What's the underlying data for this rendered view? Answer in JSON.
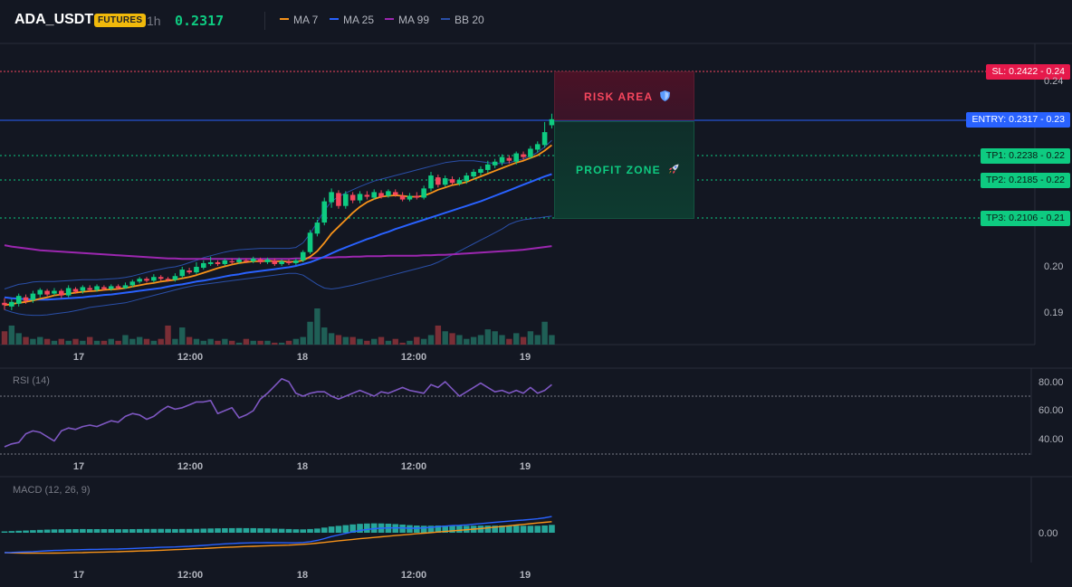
{
  "header": {
    "symbol": "ADA_USDT",
    "badge": "FUTURES",
    "timeframe": "1h",
    "price": "0.2317",
    "indicators": [
      {
        "label": "MA 7",
        "color": "#f7931a"
      },
      {
        "label": "MA 25",
        "color": "#2962ff"
      },
      {
        "label": "MA 99",
        "color": "#9c27b0"
      },
      {
        "label": "BB 20",
        "color": "#2a4fa8"
      }
    ]
  },
  "levels": {
    "sl": {
      "tag": "SL: 0.2422 - 0.24",
      "value": 0.2422,
      "color": "#f6465d"
    },
    "entry": {
      "tag": "ENTRY: 0.2317 - 0.23",
      "value": 0.2317,
      "color": "#2962ff"
    },
    "tp1": {
      "tag": "TP1: 0.2238 - 0.22",
      "value": 0.2238,
      "color": "#0ecb81"
    },
    "tp2": {
      "tag": "TP2: 0.2185 - 0.22",
      "value": 0.2185,
      "color": "#0ecb81"
    },
    "tp3": {
      "tag": "TP3: 0.2106 - 0.21",
      "value": 0.2106,
      "color": "#0ecb81"
    }
  },
  "zones": {
    "risk_label": "RISK AREA",
    "risk_icon": "shield-icon",
    "profit_label": "PROFIT ZONE",
    "profit_icon": "rocket-icon"
  },
  "price_axis": [
    "0.24",
    "0.20",
    "0.19"
  ],
  "time_axis": [
    "17",
    "12:00",
    "18",
    "12:00",
    "19"
  ],
  "rsi": {
    "title": "RSI (14)",
    "ticks": [
      "80.00",
      "60.00",
      "40.00"
    ]
  },
  "macd": {
    "title": "MACD (12, 26, 9)",
    "ticks": [
      "0.00"
    ]
  },
  "chart_data": {
    "type": "candlestick",
    "symbol": "ADA_USDT",
    "interval": "1h",
    "ylim": [
      0.1855,
      0.2455
    ],
    "candles": [
      [
        0.192,
        0.1915,
        0.193,
        0.1905
      ],
      [
        0.1912,
        0.1922,
        0.1928,
        0.1904
      ],
      [
        0.1918,
        0.1935,
        0.194,
        0.1912
      ],
      [
        0.1932,
        0.1924,
        0.1938,
        0.1918
      ],
      [
        0.1926,
        0.194,
        0.1946,
        0.192
      ],
      [
        0.1938,
        0.1948,
        0.1952,
        0.1932
      ],
      [
        0.1946,
        0.1938,
        0.195,
        0.1934
      ],
      [
        0.194,
        0.1946,
        0.1952,
        0.1936
      ],
      [
        0.1946,
        0.1936,
        0.195,
        0.193
      ],
      [
        0.1936,
        0.1952,
        0.1958,
        0.1932
      ],
      [
        0.195,
        0.1944,
        0.1954,
        0.194
      ],
      [
        0.1946,
        0.1954,
        0.1958,
        0.194
      ],
      [
        0.1952,
        0.1948,
        0.1958,
        0.1944
      ],
      [
        0.1948,
        0.1956,
        0.196,
        0.1944
      ],
      [
        0.1954,
        0.195,
        0.1958,
        0.1946
      ],
      [
        0.195,
        0.1956,
        0.196,
        0.1946
      ],
      [
        0.1956,
        0.1952,
        0.196,
        0.1948
      ],
      [
        0.1952,
        0.1958,
        0.1964,
        0.195
      ],
      [
        0.1958,
        0.1966,
        0.197,
        0.1954
      ],
      [
        0.1966,
        0.1972,
        0.1976,
        0.1962
      ],
      [
        0.1972,
        0.1968,
        0.1976,
        0.1964
      ],
      [
        0.1968,
        0.1976,
        0.1982,
        0.1964
      ],
      [
        0.1976,
        0.1972,
        0.198,
        0.1968
      ],
      [
        0.1972,
        0.197,
        0.1976,
        0.1966
      ],
      [
        0.197,
        0.1978,
        0.1984,
        0.1966
      ],
      [
        0.1978,
        0.1992,
        0.1998,
        0.1974
      ],
      [
        0.199,
        0.1986,
        0.1996,
        0.1982
      ],
      [
        0.1986,
        0.1998,
        0.2008,
        0.1982
      ],
      [
        0.1996,
        0.2006,
        0.2012,
        0.1992
      ],
      [
        0.2004,
        0.2008,
        0.202,
        0.2
      ],
      [
        0.2008,
        0.2004,
        0.2012,
        0.2
      ],
      [
        0.2004,
        0.2012,
        0.2016,
        0.2
      ],
      [
        0.201,
        0.2008,
        0.2016,
        0.2004
      ],
      [
        0.2008,
        0.2014,
        0.2018,
        0.2004
      ],
      [
        0.2012,
        0.201,
        0.2016,
        0.2006
      ],
      [
        0.201,
        0.2016,
        0.202,
        0.2006
      ],
      [
        0.2014,
        0.2008,
        0.2018,
        0.2004
      ],
      [
        0.2008,
        0.2014,
        0.2018,
        0.2004
      ],
      [
        0.2012,
        0.2004,
        0.2016,
        0.2
      ],
      [
        0.2004,
        0.201,
        0.2014,
        0.2
      ],
      [
        0.201,
        0.2006,
        0.2014,
        0.2002
      ],
      [
        0.2006,
        0.2012,
        0.2016,
        0.2002
      ],
      [
        0.2012,
        0.203,
        0.2034,
        0.2008
      ],
      [
        0.203,
        0.2072,
        0.2078,
        0.2026
      ],
      [
        0.207,
        0.2094,
        0.21,
        0.2064
      ],
      [
        0.2094,
        0.214,
        0.2148,
        0.2088
      ],
      [
        0.2138,
        0.216,
        0.2168,
        0.2126
      ],
      [
        0.2158,
        0.213,
        0.2164,
        0.2124
      ],
      [
        0.213,
        0.2156,
        0.2162,
        0.2124
      ],
      [
        0.2154,
        0.2142,
        0.216,
        0.2136
      ],
      [
        0.2142,
        0.2156,
        0.2162,
        0.2136
      ],
      [
        0.2154,
        0.215,
        0.2162,
        0.2144
      ],
      [
        0.2148,
        0.216,
        0.2166,
        0.2144
      ],
      [
        0.2158,
        0.215,
        0.2164,
        0.2146
      ],
      [
        0.2152,
        0.2162,
        0.2166,
        0.2148
      ],
      [
        0.216,
        0.2154,
        0.2166,
        0.215
      ],
      [
        0.2152,
        0.2144,
        0.216,
        0.214
      ],
      [
        0.2144,
        0.2152,
        0.2158,
        0.214
      ],
      [
        0.2152,
        0.2148,
        0.216,
        0.2144
      ],
      [
        0.2148,
        0.2168,
        0.2174,
        0.2144
      ],
      [
        0.2168,
        0.2196,
        0.2204,
        0.2162
      ],
      [
        0.2192,
        0.2176,
        0.2198,
        0.217
      ],
      [
        0.2176,
        0.219,
        0.2196,
        0.2172
      ],
      [
        0.2188,
        0.218,
        0.2194,
        0.2176
      ],
      [
        0.2178,
        0.2186,
        0.2192,
        0.2174
      ],
      [
        0.2184,
        0.2196,
        0.2202,
        0.2178
      ],
      [
        0.2194,
        0.2204,
        0.221,
        0.2188
      ],
      [
        0.2202,
        0.221,
        0.2216,
        0.2196
      ],
      [
        0.2208,
        0.222,
        0.2228,
        0.2202
      ],
      [
        0.2218,
        0.2226,
        0.2232,
        0.2212
      ],
      [
        0.2224,
        0.2236,
        0.2242,
        0.2218
      ],
      [
        0.2234,
        0.2228,
        0.224,
        0.2222
      ],
      [
        0.2226,
        0.2244,
        0.2248,
        0.222
      ],
      [
        0.2242,
        0.2236,
        0.2248,
        0.223
      ],
      [
        0.2236,
        0.2254,
        0.226,
        0.2232
      ],
      [
        0.2252,
        0.2264,
        0.227,
        0.2246
      ],
      [
        0.2262,
        0.229,
        0.2312,
        0.2256
      ],
      [
        0.2305,
        0.2318,
        0.233,
        0.2298
      ]
    ],
    "volume": [
      7,
      10,
      6,
      4,
      3,
      4,
      3,
      2,
      3,
      2,
      3,
      2,
      4,
      2,
      2,
      3,
      2,
      5,
      3,
      4,
      3,
      2,
      3,
      10,
      3,
      9,
      4,
      3,
      2,
      3,
      2,
      3,
      2,
      1,
      3,
      2,
      2,
      2,
      1,
      1,
      2,
      3,
      4,
      12,
      19,
      9,
      6,
      5,
      4,
      4,
      3,
      2,
      3,
      4,
      2,
      3,
      1,
      2,
      4,
      3,
      5,
      10,
      7,
      6,
      5,
      3,
      4,
      5,
      8,
      7,
      5,
      3,
      6,
      4,
      7,
      5,
      12,
      5
    ],
    "ma7": [
      0.1915,
      0.1917,
      0.192,
      0.1922,
      0.1925,
      0.1929,
      0.1932,
      0.1936,
      0.1938,
      0.194,
      0.1942,
      0.1944,
      0.1945,
      0.1946,
      0.1948,
      0.1949,
      0.195,
      0.1952,
      0.1955,
      0.1958,
      0.1961,
      0.1963,
      0.1966,
      0.1968,
      0.197,
      0.1973,
      0.1976,
      0.198,
      0.1985,
      0.199,
      0.1995,
      0.1999,
      0.2003,
      0.2006,
      0.2008,
      0.201,
      0.201,
      0.2011,
      0.201,
      0.201,
      0.2009,
      0.2009,
      0.2012,
      0.202,
      0.2032,
      0.205,
      0.207,
      0.2085,
      0.21,
      0.2115,
      0.2128,
      0.2138,
      0.2145,
      0.215,
      0.2152,
      0.2153,
      0.2152,
      0.215,
      0.215,
      0.2152,
      0.2158,
      0.2165,
      0.217,
      0.2175,
      0.2178,
      0.2182,
      0.2188,
      0.2194,
      0.22,
      0.2206,
      0.2212,
      0.2218,
      0.2224,
      0.2228,
      0.2234,
      0.224,
      0.225,
      0.2262
    ],
    "ma25": [
      0.1932,
      0.193,
      0.1929,
      0.1928,
      0.1927,
      0.1927,
      0.1927,
      0.1928,
      0.1929,
      0.193,
      0.1931,
      0.1932,
      0.1934,
      0.1935,
      0.1937,
      0.1938,
      0.194,
      0.1942,
      0.1944,
      0.1946,
      0.1948,
      0.195,
      0.1952,
      0.1955,
      0.1958,
      0.196,
      0.1963,
      0.1966,
      0.1968,
      0.1971,
      0.1974,
      0.1977,
      0.198,
      0.1982,
      0.1985,
      0.1987,
      0.1989,
      0.1991,
      0.1993,
      0.1995,
      0.1997,
      0.2,
      0.2004,
      0.2008,
      0.2014,
      0.202,
      0.2027,
      0.2034,
      0.204,
      0.2046,
      0.2052,
      0.2058,
      0.2063,
      0.2069,
      0.2074,
      0.208,
      0.2085,
      0.209,
      0.2095,
      0.21,
      0.2105,
      0.211,
      0.2115,
      0.212,
      0.2125,
      0.213,
      0.2135,
      0.214,
      0.2146,
      0.2152,
      0.2158,
      0.2164,
      0.217,
      0.2176,
      0.2182,
      0.2188,
      0.2194,
      0.2199
    ],
    "ma99": [
      0.2045,
      0.2042,
      0.204,
      0.2038,
      0.2036,
      0.2034,
      0.2033,
      0.2032,
      0.2031,
      0.203,
      0.2029,
      0.2028,
      0.2027,
      0.2026,
      0.2025,
      0.2024,
      0.2023,
      0.2022,
      0.2021,
      0.202,
      0.2019,
      0.2018,
      0.2017,
      0.2016,
      0.2016,
      0.2015,
      0.2015,
      0.2015,
      0.2015,
      0.2015,
      0.2015,
      0.2015,
      0.2015,
      0.2015,
      0.2015,
      0.2015,
      0.2015,
      0.2015,
      0.2015,
      0.2015,
      0.2015,
      0.2016,
      0.2016,
      0.2017,
      0.2017,
      0.2018,
      0.2018,
      0.2019,
      0.2019,
      0.202,
      0.202,
      0.2021,
      0.2021,
      0.2021,
      0.2022,
      0.2022,
      0.2022,
      0.2022,
      0.2022,
      0.2023,
      0.2023,
      0.2024,
      0.2024,
      0.2025,
      0.2026,
      0.2027,
      0.2028,
      0.2029,
      0.203,
      0.2031,
      0.2032,
      0.2033,
      0.2034,
      0.2035,
      0.2037,
      0.2039,
      0.2041,
      0.2043
    ],
    "bb_upper": [
      0.195,
      0.1955,
      0.196,
      0.1962,
      0.1965,
      0.1966,
      0.1966,
      0.1966,
      0.1967,
      0.1968,
      0.1969,
      0.197,
      0.197,
      0.197,
      0.1971,
      0.1972,
      0.1973,
      0.1975,
      0.1978,
      0.1982,
      0.1986,
      0.199,
      0.1993,
      0.1996,
      0.1998,
      0.2002,
      0.2007,
      0.2012,
      0.2018,
      0.2022,
      0.2026,
      0.203,
      0.2033,
      0.2035,
      0.2036,
      0.2037,
      0.2038,
      0.2038,
      0.2038,
      0.2038,
      0.2038,
      0.204,
      0.205,
      0.207,
      0.2095,
      0.212,
      0.214,
      0.215,
      0.2158,
      0.2165,
      0.2172,
      0.2178,
      0.2184,
      0.2188,
      0.2192,
      0.2196,
      0.22,
      0.2204,
      0.2208,
      0.2212,
      0.2216,
      0.222,
      0.2224,
      0.2226,
      0.2228,
      0.2228,
      0.2228,
      0.2226,
      0.2224,
      0.2222,
      0.2222,
      0.2224,
      0.2228,
      0.2232,
      0.2238,
      0.2246,
      0.2258,
      0.2272
    ],
    "bb_lower": [
      0.1905,
      0.19,
      0.1896,
      0.1894,
      0.1893,
      0.1893,
      0.1894,
      0.1896,
      0.1898,
      0.19,
      0.1903,
      0.1906,
      0.191,
      0.1912,
      0.1914,
      0.1916,
      0.1918,
      0.192,
      0.1924,
      0.1928,
      0.1932,
      0.1936,
      0.194,
      0.1944,
      0.1948,
      0.1952,
      0.1955,
      0.1958,
      0.196,
      0.1962,
      0.1964,
      0.1966,
      0.1968,
      0.197,
      0.1972,
      0.1974,
      0.1976,
      0.1978,
      0.198,
      0.1982,
      0.1984,
      0.1984,
      0.198,
      0.197,
      0.196,
      0.1952,
      0.195,
      0.1952,
      0.1955,
      0.1958,
      0.1962,
      0.1966,
      0.197,
      0.1974,
      0.1978,
      0.1982,
      0.1986,
      0.199,
      0.1994,
      0.1998,
      0.2002,
      0.2008,
      0.2016,
      0.2024,
      0.2032,
      0.204,
      0.2048,
      0.2056,
      0.2064,
      0.2072,
      0.208,
      0.209,
      0.2096,
      0.21,
      0.2102,
      0.2104,
      0.2106,
      0.2108
    ],
    "rsi": [
      35,
      37,
      38,
      44,
      46,
      45,
      42,
      39,
      46,
      48,
      47,
      49,
      50,
      49,
      51,
      53,
      52,
      56,
      58,
      57,
      54,
      56,
      60,
      63,
      61,
      62,
      64,
      66,
      66,
      67,
      58,
      60,
      62,
      55,
      57,
      60,
      68,
      72,
      77,
      82,
      80,
      72,
      70,
      72,
      73,
      73,
      70,
      68,
      70,
      72,
      74,
      72,
      70,
      73,
      72,
      74,
      76,
      74,
      73,
      72,
      78,
      76,
      80,
      75,
      70,
      73,
      76,
      79,
      76,
      73,
      74,
      72,
      74,
      72,
      76,
      72,
      74,
      78
    ]
  }
}
